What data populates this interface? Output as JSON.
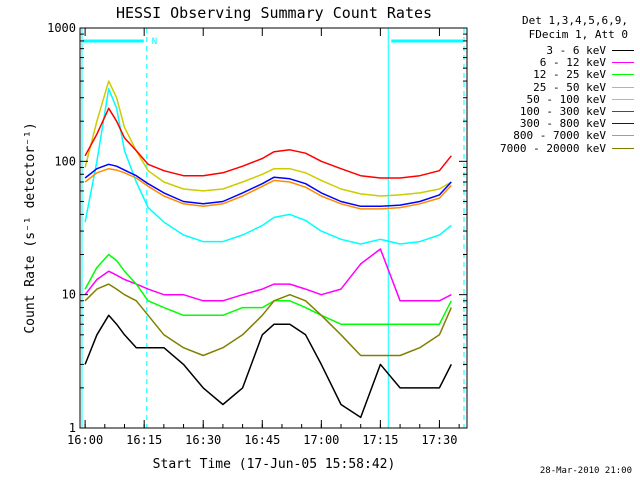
{
  "chart_data": {
    "type": "line",
    "title": "HESSI Observing Summary Count Rates",
    "xlabel": "Start Time (17-Jun-05 15:58:42)",
    "ylabel": "Count Rate (s⁻¹ detector⁻¹)",
    "yscale": "log",
    "ylim": [
      1,
      1000
    ],
    "xlim": [
      "15:58:42",
      "17:37:00"
    ],
    "x_ticks": [
      "16:00",
      "16:15",
      "16:30",
      "16:45",
      "17:00",
      "17:15",
      "17:30"
    ],
    "y_ticks": [
      "1",
      "10",
      "100",
      "1000"
    ],
    "grid": false,
    "legend_position": "right",
    "legend_header": [
      "Det 1,3,4,5,6,9,",
      "FDecim 1, Att 0"
    ],
    "flag_label": "N",
    "footer": "28-Mar-2010 21:00",
    "x": [
      "16:00",
      "16:03",
      "16:06",
      "16:08",
      "16:10",
      "16:13",
      "16:16",
      "16:20",
      "16:25",
      "16:30",
      "16:35",
      "16:40",
      "16:45",
      "16:48",
      "16:52",
      "16:56",
      "17:00",
      "17:05",
      "17:10",
      "17:15",
      "17:20",
      "17:25",
      "17:30",
      "17:33"
    ],
    "series": [
      {
        "name": "3 - 6 keV",
        "color": "#000000",
        "values": [
          3,
          5,
          7,
          6,
          5,
          4,
          4,
          4,
          3,
          2,
          1.5,
          2,
          5,
          6,
          6,
          5,
          3,
          1.5,
          1.2,
          3,
          2,
          2,
          2,
          3
        ]
      },
      {
        "name": "6 - 12 keV",
        "color": "#ff00ff",
        "values": [
          10,
          13,
          15,
          14,
          13,
          12,
          11,
          10,
          10,
          9,
          9,
          10,
          11,
          12,
          12,
          11,
          10,
          11,
          17,
          22,
          9,
          9,
          9,
          10
        ]
      },
      {
        "name": "12 - 25 keV",
        "color": "#00ff00",
        "values": [
          11,
          16,
          20,
          18,
          15,
          12,
          9,
          8,
          7,
          7,
          7,
          8,
          8,
          9,
          9,
          8,
          7,
          6,
          6,
          6,
          6,
          6,
          6,
          9
        ]
      },
      {
        "name": "25 - 50 keV",
        "color": "#00ffff",
        "values": [
          35,
          100,
          350,
          250,
          120,
          70,
          45,
          35,
          28,
          25,
          25,
          28,
          33,
          38,
          40,
          36,
          30,
          26,
          24,
          26,
          24,
          25,
          28,
          33
        ]
      },
      {
        "name": "50 - 100 keV",
        "color": "#cccc00",
        "values": [
          90,
          200,
          400,
          300,
          180,
          120,
          85,
          70,
          62,
          60,
          62,
          70,
          80,
          88,
          88,
          82,
          72,
          62,
          57,
          55,
          56,
          58,
          62,
          70
        ]
      },
      {
        "name": "100 - 300 keV",
        "color": "#ff0000",
        "values": [
          110,
          160,
          250,
          200,
          150,
          120,
          95,
          85,
          78,
          78,
          82,
          92,
          105,
          118,
          122,
          115,
          100,
          88,
          78,
          75,
          75,
          78,
          85,
          110
        ]
      },
      {
        "name": "300 - 800 keV",
        "color": "#0000ff",
        "values": [
          75,
          88,
          95,
          92,
          86,
          78,
          68,
          58,
          50,
          48,
          50,
          58,
          68,
          76,
          74,
          68,
          58,
          50,
          46,
          46,
          47,
          50,
          56,
          70
        ]
      },
      {
        "name": "800 - 7000 keV",
        "color": "#ff8c00",
        "values": [
          70,
          82,
          88,
          86,
          82,
          75,
          65,
          55,
          48,
          46,
          48,
          55,
          65,
          72,
          70,
          64,
          55,
          48,
          44,
          44,
          45,
          48,
          53,
          66
        ]
      },
      {
        "name": "7000 - 20000 keV",
        "color": "#808000",
        "values": [
          9,
          11,
          12,
          11,
          10,
          9,
          7,
          5,
          4,
          3.5,
          4,
          5,
          7,
          9,
          10,
          9,
          7,
          5,
          3.5,
          3.5,
          3.5,
          4,
          5,
          8
        ]
      }
    ]
  }
}
